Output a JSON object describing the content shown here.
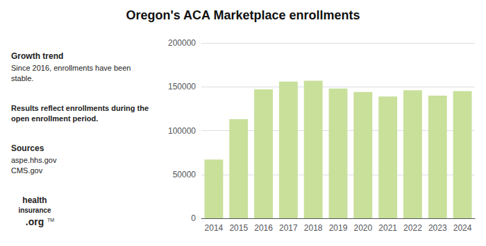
{
  "chart_data": {
    "type": "bar",
    "title": "Oregon's ACA Marketplace enrollments",
    "categories": [
      "2014",
      "2015",
      "2016",
      "2017",
      "2018",
      "2019",
      "2020",
      "2021",
      "2022",
      "2023",
      "2024"
    ],
    "values": [
      67000,
      113000,
      147000,
      156000,
      157000,
      148000,
      144000,
      139000,
      146000,
      140000,
      145000
    ],
    "color": "#c8e09a",
    "ylim": [
      0,
      200000
    ],
    "yticks": [
      0,
      50000,
      100000,
      150000,
      200000
    ],
    "grid": true,
    "annotations": [
      "Growth trend",
      "Since 2016, enrollments have been\nstable.",
      "Results reflect enrollments during the\nopen enrollment period.",
      "Sources",
      "aspe.hhs.gov\nCMS.gov",
      "health",
      "insurance",
      ".org",
      "TM"
    ]
  }
}
